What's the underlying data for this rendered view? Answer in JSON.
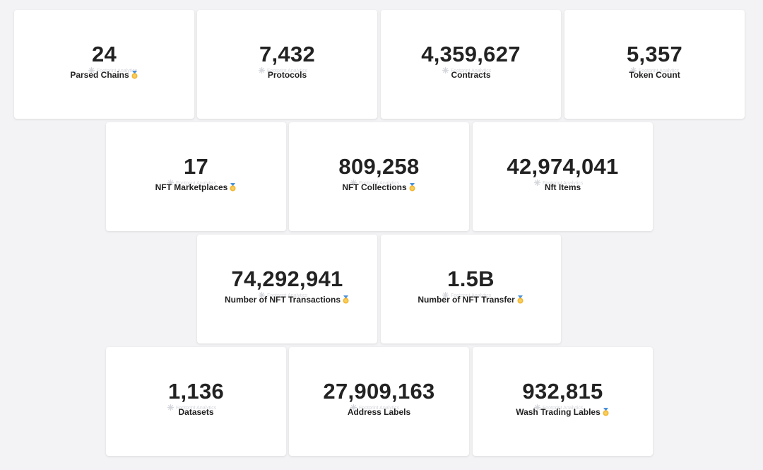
{
  "watermark_text": "Footprint Analytics",
  "colors": {
    "background": "#f3f3f5",
    "card": "#ffffff",
    "text": "#222222",
    "medal": "#f2b632"
  },
  "cards": [
    {
      "value": "24",
      "label": "Parsed Chains",
      "medal": true
    },
    {
      "value": "7,432",
      "label": "Protocols",
      "medal": false
    },
    {
      "value": "4,359,627",
      "label": "Contracts",
      "medal": false
    },
    {
      "value": "5,357",
      "label": "Token Count",
      "medal": false
    },
    {
      "value": "17",
      "label": "NFT Marketplaces",
      "medal": true
    },
    {
      "value": "809,258",
      "label": "NFT Collections",
      "medal": true
    },
    {
      "value": "42,974,041",
      "label": "Nft Items",
      "medal": false
    },
    {
      "value": "74,292,941",
      "label": "Number of NFT Transactions",
      "medal": true
    },
    {
      "value": "1.5B",
      "label": "Number of NFT Transfer",
      "medal": true
    },
    {
      "value": "1,136",
      "label": "Datasets",
      "medal": false
    },
    {
      "value": "27,909,163",
      "label": "Address Labels",
      "medal": false
    },
    {
      "value": "932,815",
      "label": "Wash Trading Lables",
      "medal": true
    }
  ]
}
